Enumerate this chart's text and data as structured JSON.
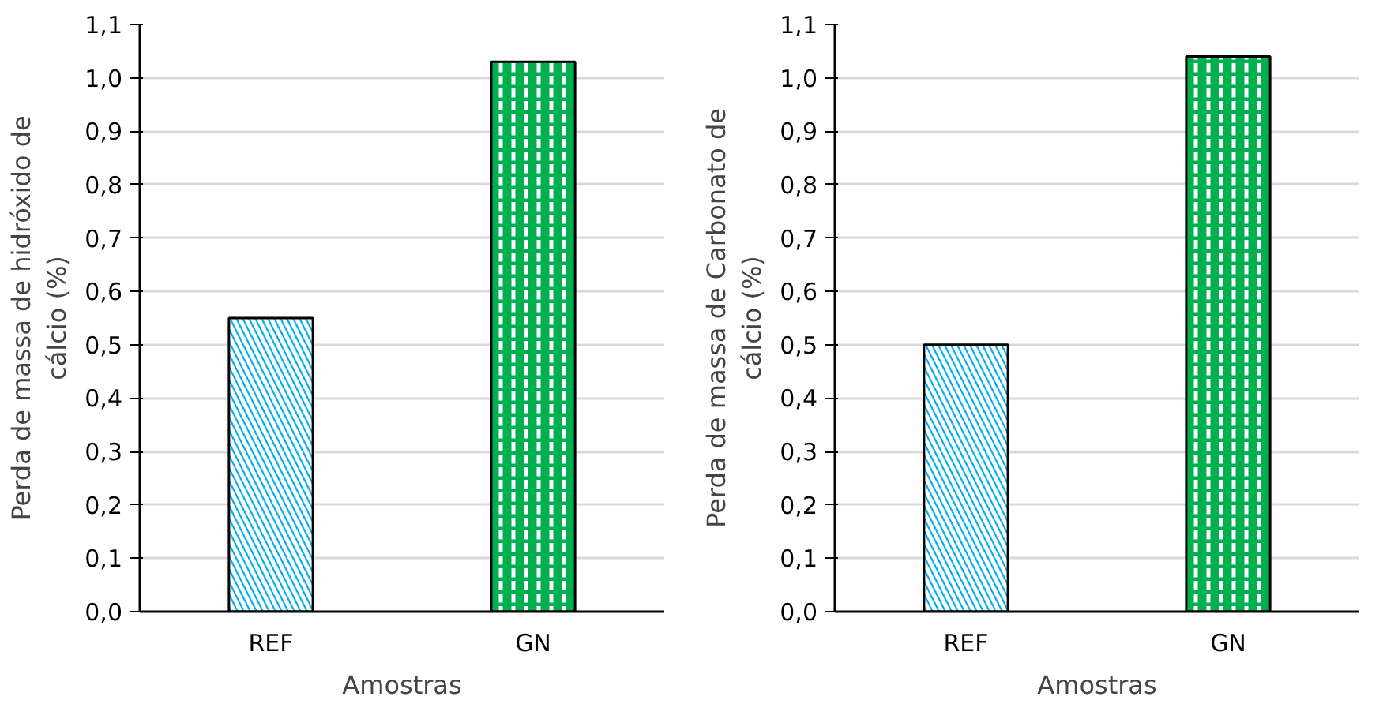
{
  "chart_data": [
    {
      "type": "bar",
      "categories": [
        "REF",
        "GN"
      ],
      "values": [
        0.55,
        1.03
      ],
      "colors": [
        "#00b0f0",
        "#00b050"
      ],
      "xlabel": "Amostras",
      "ylabel": "Perda de massa de hidróxido de cálcio (%)",
      "ylim": [
        0,
        1.1
      ],
      "yticks": [
        {
          "value": 0,
          "label": "0,0"
        },
        {
          "value": 0.1,
          "label": "0,1"
        },
        {
          "value": 0.2,
          "label": "0,2"
        },
        {
          "value": 0.3,
          "label": "0,3"
        },
        {
          "value": 0.4,
          "label": "0,4"
        },
        {
          "value": 0.5,
          "label": "0,5"
        },
        {
          "value": 0.6,
          "label": "0,6"
        },
        {
          "value": 0.7,
          "label": "0,7"
        },
        {
          "value": 0.8,
          "label": "0,8"
        },
        {
          "value": 0.9,
          "label": "0,9"
        },
        {
          "value": 1.0,
          "label": "1,0"
        },
        {
          "value": 1.1,
          "label": "1,1"
        }
      ],
      "grid": "y"
    },
    {
      "type": "bar",
      "categories": [
        "REF",
        "GN"
      ],
      "values": [
        0.5,
        1.04
      ],
      "colors": [
        "#00b0f0",
        "#00b050"
      ],
      "xlabel": "Amostras",
      "ylabel": "Perda de massa de Carbonato de cálcio (%)",
      "ylim": [
        0,
        1.1
      ],
      "yticks": [
        {
          "value": 0,
          "label": "0,0"
        },
        {
          "value": 0.1,
          "label": "0,1"
        },
        {
          "value": 0.2,
          "label": "0,2"
        },
        {
          "value": 0.3,
          "label": "0,3"
        },
        {
          "value": 0.4,
          "label": "0,4"
        },
        {
          "value": 0.5,
          "label": "0,5"
        },
        {
          "value": 0.6,
          "label": "0,6"
        },
        {
          "value": 0.7,
          "label": "0,7"
        },
        {
          "value": 0.8,
          "label": "0,8"
        },
        {
          "value": 0.9,
          "label": "0,9"
        },
        {
          "value": 1.0,
          "label": "1,0"
        },
        {
          "value": 1.1,
          "label": "1,1"
        }
      ],
      "grid": "y"
    }
  ]
}
